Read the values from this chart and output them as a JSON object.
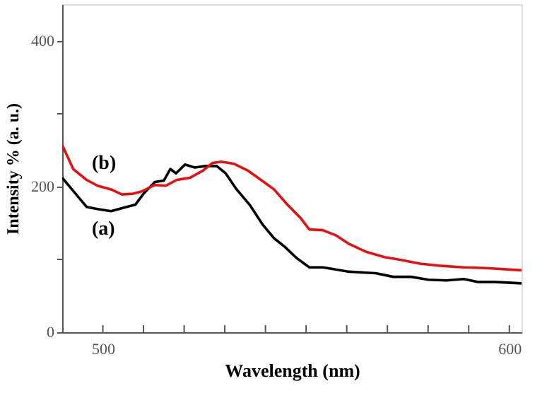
{
  "chart_data": {
    "type": "line",
    "xlabel": "Wavelength (nm)",
    "ylabel": "Intensity % (a. u.)",
    "xlim": [
      490,
      603
    ],
    "ylim": [
      0,
      450
    ],
    "xticks": [
      500,
      {
        "value": 510,
        "label": null
      },
      {
        "value": 520,
        "label": null
      },
      {
        "value": 530,
        "label": null
      },
      {
        "value": 540,
        "label": null
      },
      {
        "value": 550,
        "label": null
      },
      {
        "value": 560,
        "label": null
      },
      {
        "value": 570,
        "label": null
      },
      {
        "value": 580,
        "label": null
      },
      {
        "value": 590,
        "label": null
      },
      600
    ],
    "yticks": [
      0,
      {
        "value": 100,
        "label": null
      },
      200,
      {
        "value": 300,
        "label": null
      },
      400
    ],
    "grid": false,
    "marker": "none",
    "line_style": "solid",
    "series": [
      {
        "name": "(a)",
        "color": "#000000",
        "x": [
          490,
          493.3,
          496,
          498.7,
          502,
          505.2,
          508,
          510,
          512.8,
          515,
          516.6,
          518,
          520.2,
          522.6,
          525.3,
          528,
          530.2,
          532.9,
          536.1,
          539.4,
          542.1,
          544.8,
          547.6,
          550.8,
          554.1,
          557.3,
          560.6,
          563.9,
          567.1,
          571.4,
          575.8,
          580.1,
          584.5,
          588.8,
          592.1,
          596.4,
          603
        ],
        "values": [
          212,
          190,
          172,
          169,
          166,
          171,
          175,
          190,
          206,
          208,
          224,
          218,
          230,
          226,
          228,
          228,
          218,
          196,
          175,
          147,
          129,
          117,
          102,
          89,
          89,
          86,
          83,
          82,
          81,
          76,
          76,
          72,
          71,
          73,
          69,
          69,
          67
        ]
      },
      {
        "name": "(b)",
        "color": "#e8100f",
        "x": [
          490,
          492.7,
          496,
          498.7,
          502,
          504.7,
          507.4,
          509.5,
          512.8,
          515.5,
          518.2,
          521.5,
          524.7,
          526.9,
          529.1,
          532.3,
          535.6,
          538.9,
          542.1,
          545.4,
          548.6,
          550.8,
          554.1,
          557.3,
          560.6,
          564.9,
          569.3,
          573.6,
          578,
          583.4,
          588.8,
          594.2,
          603
        ],
        "values": [
          257,
          224,
          209,
          201,
          196,
          189,
          190,
          193,
          202,
          201,
          209,
          212,
          222,
          232,
          234,
          231,
          222,
          209,
          196,
          175,
          157,
          141,
          140,
          133,
          121,
          110,
          103,
          99,
          94,
          91,
          89,
          88,
          85
        ]
      }
    ]
  }
}
